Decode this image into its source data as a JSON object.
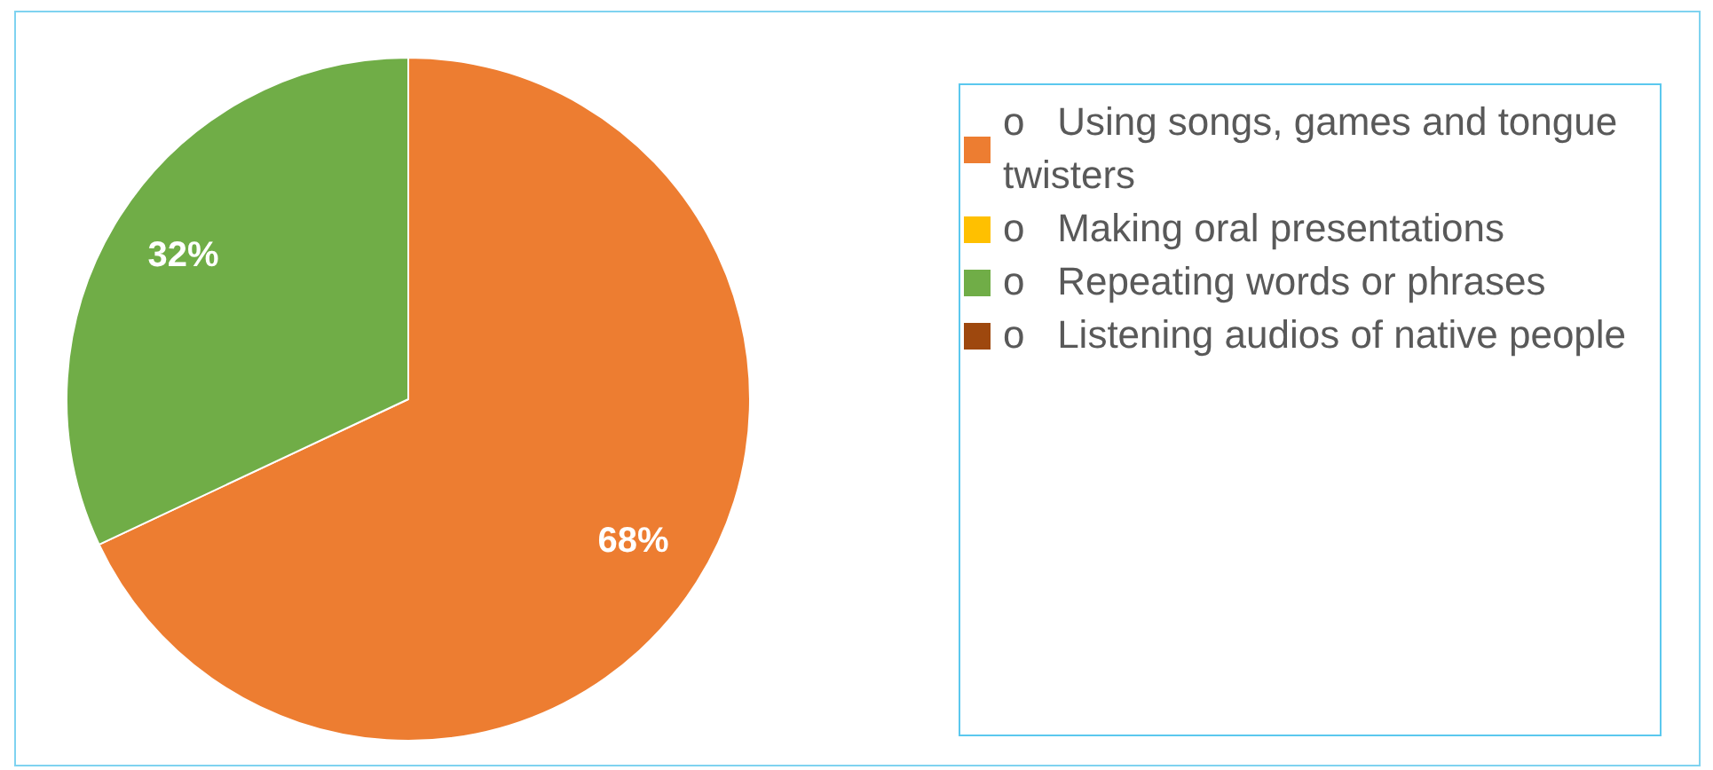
{
  "chart_data": {
    "type": "pie",
    "categories": [
      "o   Using songs, games and tongue twisters",
      "o   Making oral presentations",
      "o   Repeating words or phrases",
      "o   Listening audios of native people"
    ],
    "values": [
      68,
      0,
      32,
      0
    ],
    "colors": [
      "#ed7d31",
      "#ffc000",
      "#70ad47",
      "#9e480e"
    ],
    "value_labels": [
      "68%",
      null,
      "32%",
      null
    ],
    "legend": "right"
  }
}
